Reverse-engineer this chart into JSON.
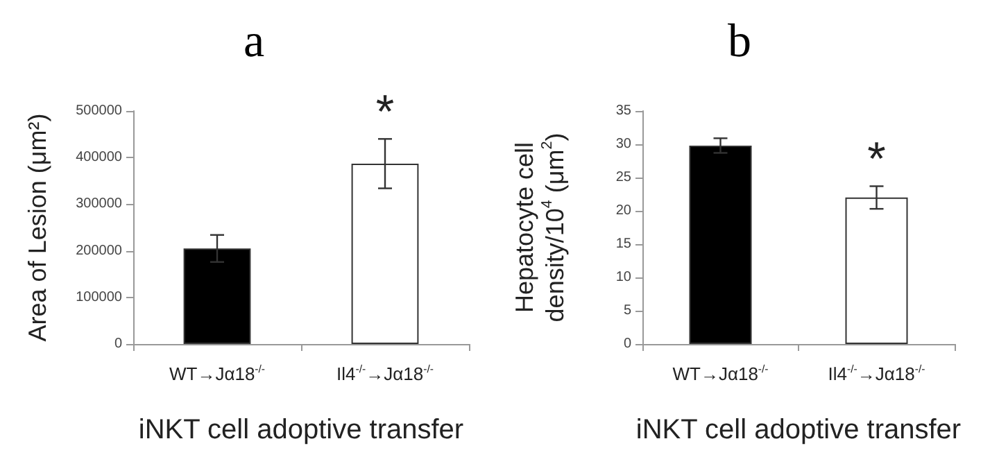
{
  "chart_data": [
    {
      "type": "bar",
      "title": "a",
      "xlabel": "iNKT cell adoptive transfer",
      "ylabel": "Area of Lesion (μm²)",
      "categories": [
        "WT→Jα18$^{-/-}$",
        "Il4$^{-/-}$→Jα18$^{-/-}$"
      ],
      "values": [
        205000,
        387000
      ],
      "errors": [
        29000,
        53000
      ],
      "colors": [
        "#000000",
        "#ffffff"
      ],
      "ylim": [
        0,
        500000
      ],
      "yticks": [
        0,
        100000,
        200000,
        300000,
        400000,
        500000
      ],
      "grid": false,
      "annotations": [
        {
          "text": "*",
          "x": "Il4$^{-/-}$→Jα18$^{-/-}$",
          "y": 440000
        }
      ]
    },
    {
      "type": "bar",
      "title": "b",
      "xlabel": "iNKT cell adoptive transfer",
      "ylabel": "Hepatocyte cell\ndensity/10$^{4}$ (μm$^{2}$)",
      "categories": [
        "WT→Jα18$^{-/-}$",
        "Il4$^{-/-}$→Jα18$^{-/-}$"
      ],
      "values": [
        29.8,
        22
      ],
      "errors": [
        1.1,
        1.7
      ],
      "colors": [
        "#000000",
        "#ffffff"
      ],
      "ylim": [
        0,
        35
      ],
      "yticks": [
        0,
        5,
        10,
        15,
        20,
        25,
        30,
        35
      ],
      "grid": false,
      "annotations": [
        {
          "text": "*",
          "x": "Il4$^{-/-}$→Jα18$^{-/-}$",
          "y": 23.7
        }
      ]
    }
  ]
}
